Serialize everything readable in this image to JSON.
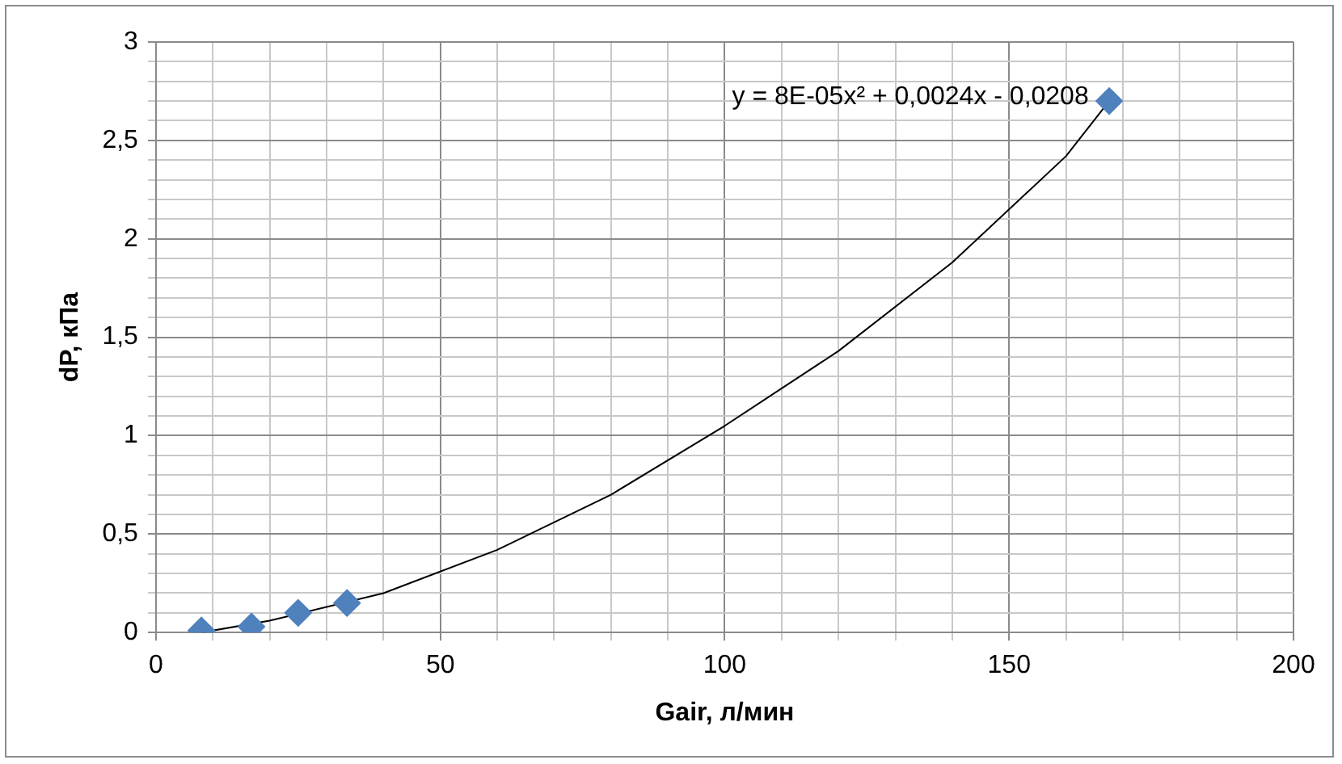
{
  "chart_data": {
    "type": "scatter",
    "xlabel": "Gair, л/мин",
    "ylabel": "dP, кПа",
    "annotations": [
      "y = 8E-05x² + 0,0024x - 0,0208"
    ],
    "xlim": [
      0,
      200
    ],
    "xticks": [
      0,
      {
        "value": 10,
        "label": null
      },
      {
        "value": 20,
        "label": null
      },
      {
        "value": 30,
        "label": null
      },
      {
        "value": 40,
        "label": null
      },
      50,
      {
        "value": 60,
        "label": null
      },
      {
        "value": 70,
        "label": null
      },
      {
        "value": 80,
        "label": null
      },
      {
        "value": 90,
        "label": null
      },
      100,
      {
        "value": 110,
        "label": null
      },
      {
        "value": 120,
        "label": null
      },
      {
        "value": 130,
        "label": null
      },
      {
        "value": 140,
        "label": null
      },
      150,
      {
        "value": 160,
        "label": null
      },
      {
        "value": 170,
        "label": null
      },
      {
        "value": 180,
        "label": null
      },
      {
        "value": 190,
        "label": null
      },
      200
    ],
    "ylim": [
      0,
      3
    ],
    "yticks": [
      0,
      {
        "value": 0.1,
        "label": null
      },
      {
        "value": 0.2,
        "label": null
      },
      {
        "value": 0.3,
        "label": null
      },
      {
        "value": 0.4,
        "label": null
      },
      {
        "value": 0.5,
        "label": "0,5"
      },
      {
        "value": 0.6,
        "label": null
      },
      {
        "value": 0.7,
        "label": null
      },
      {
        "value": 0.8,
        "label": null
      },
      {
        "value": 0.9,
        "label": null
      },
      1,
      {
        "value": 1.1,
        "label": null
      },
      {
        "value": 1.2,
        "label": null
      },
      {
        "value": 1.3,
        "label": null
      },
      {
        "value": 1.4,
        "label": null
      },
      {
        "value": 1.5,
        "label": "1,5"
      },
      {
        "value": 1.6,
        "label": null
      },
      {
        "value": 1.7,
        "label": null
      },
      {
        "value": 1.8,
        "label": null
      },
      {
        "value": 1.9,
        "label": null
      },
      2,
      {
        "value": 2.1,
        "label": null
      },
      {
        "value": 2.2,
        "label": null
      },
      {
        "value": 2.3,
        "label": null
      },
      {
        "value": 2.4,
        "label": null
      },
      {
        "value": 2.5,
        "label": "2,5"
      },
      {
        "value": 2.6,
        "label": null
      },
      {
        "value": 2.7,
        "label": null
      },
      {
        "value": 2.8,
        "label": null
      },
      {
        "value": 2.9,
        "label": null
      },
      3
    ],
    "grid": true,
    "legend": false,
    "marker": "diamond",
    "series": [
      {
        "type": "line",
        "color": "#000000",
        "marker": "none",
        "x": [
          8,
          20,
          40,
          60,
          80,
          100,
          120,
          140,
          160,
          167.6
        ],
        "values": [
          0.0,
          0.06,
          0.2,
          0.42,
          0.7,
          1.05,
          1.43,
          1.88,
          2.42,
          2.7
        ]
      },
      {
        "type": "scatter",
        "color": "#4f81bd",
        "x": [
          8,
          16.8,
          25,
          33.6,
          167.6
        ],
        "values": [
          0.01,
          0.03,
          0.1,
          0.15,
          2.7
        ]
      }
    ]
  }
}
